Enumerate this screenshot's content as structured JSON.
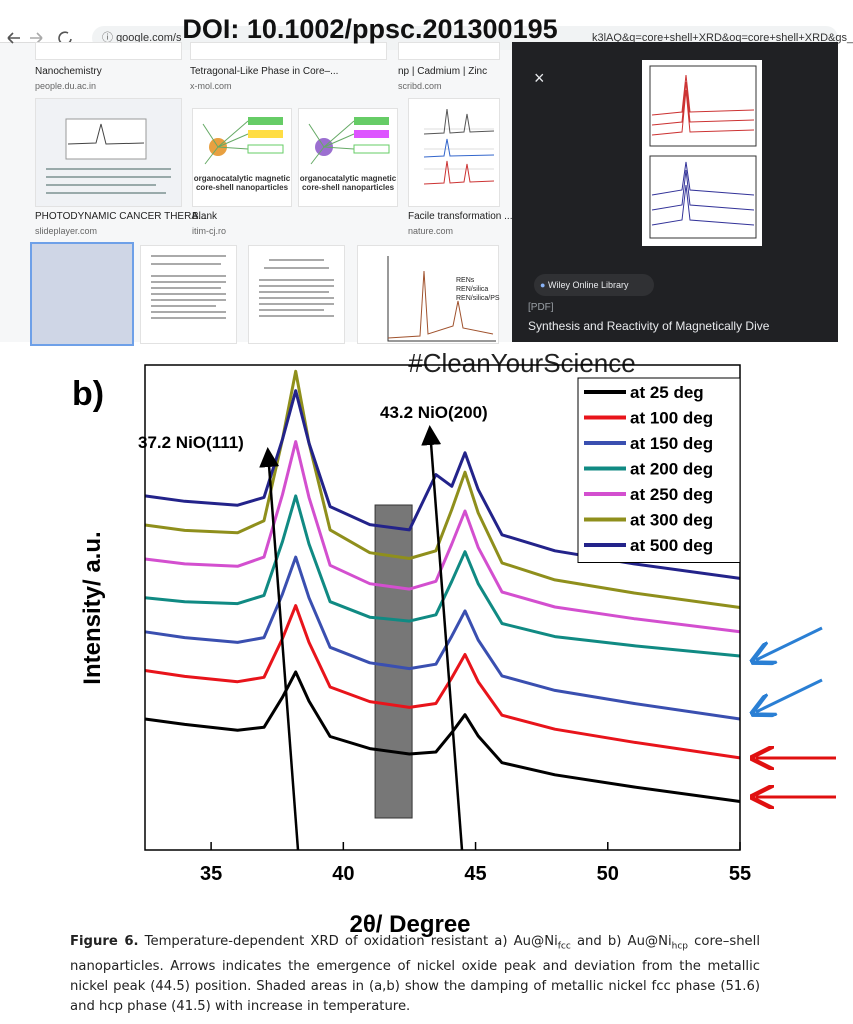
{
  "doi": "DOI: 10.1002/ppsc.201300195",
  "hashtag": "#CleanYourScience",
  "browser": {
    "url": "google.com/s",
    "url_tail": "k3lAQ&q=core+shell+XRD&oq=core+shell+XRD&gs_"
  },
  "results": [
    {
      "title": "Nanochemistry",
      "source": "people.du.ac.in"
    },
    {
      "title": "Tetragonal-Like Phase in Core–...",
      "source": "x-mol.com"
    },
    {
      "title": "np | Cadmium | Zinc",
      "source": "scribd.com"
    },
    {
      "title": "PHOTODYNAMIC CANCER THERA...",
      "source": "slideplayer.com"
    },
    {
      "title": "Blank",
      "source": "itim-cj.ro"
    },
    {
      "title": "Facile transformation ...",
      "source": "nature.com"
    }
  ],
  "thumbnails": {
    "organo_1": "organocatalytic magnetic core-shell nanoparticles",
    "organo_2": "organocatalytic magnetic core-shell nanoparticles",
    "legend": [
      "RENs",
      "REN/silica",
      "REN/silica/PS"
    ]
  },
  "panel": {
    "source": "Wiley Online Library",
    "tag": "[PDF]",
    "title": "Synthesis and Reactivity of Magnetically Dive"
  },
  "chart_data": {
    "type": "line",
    "panel_label": "b)",
    "xlabel": "2θ/ Degree",
    "ylabel": "Intensity/ a.u.",
    "xlim": [
      32.5,
      55
    ],
    "xticks": [
      35,
      40,
      45,
      50,
      55
    ],
    "ylim": [
      0,
      100
    ],
    "legend": "upper right",
    "annotations": [
      "37.2 NiO(111)",
      "43.2 NiO(200)"
    ],
    "shaded_band": [
      41.2,
      42.6
    ],
    "x": [
      32.5,
      34,
      36,
      37,
      37.7,
      38.2,
      38.7,
      39.5,
      41,
      42.5,
      43.5,
      44.1,
      44.6,
      45.1,
      46,
      48,
      51,
      55
    ],
    "series": [
      {
        "name": "at 25 deg",
        "color": "#000000",
        "values": [
          27,
          25.9,
          24.7,
          25.3,
          31.5,
          36.7,
          30.7,
          23.4,
          20.9,
          19.8,
          20.2,
          24.2,
          27.9,
          23.5,
          18,
          15.5,
          13,
          10
        ]
      },
      {
        "name": "at 100 deg",
        "color": "#e8141b",
        "values": [
          37,
          35.8,
          34.7,
          35.6,
          43.6,
          50.4,
          42.8,
          33.6,
          30.6,
          29.4,
          30.2,
          35.5,
          40.3,
          34.7,
          27.8,
          24.9,
          22.2,
          19
        ]
      },
      {
        "name": "at 150 deg",
        "color": "#3a4fb0",
        "values": [
          45,
          43.8,
          42.8,
          43.8,
          52.8,
          60.4,
          52,
          41.8,
          38.6,
          37.4,
          38.3,
          44.1,
          49.3,
          43.3,
          35.9,
          32.9,
          30.2,
          27
        ]
      },
      {
        "name": "at 200 deg",
        "color": "#108a83",
        "values": [
          52,
          51.2,
          50.8,
          52.5,
          63.6,
          73,
          63.1,
          51.2,
          48,
          47.2,
          48.5,
          55.4,
          61.5,
          54.9,
          46.7,
          44,
          42.1,
          40
        ]
      },
      {
        "name": "at 250 deg",
        "color": "#d34fcf",
        "values": [
          60,
          59,
          58.5,
          60.4,
          73.3,
          84.2,
          72.7,
          58.7,
          54.9,
          53.8,
          55.4,
          63.1,
          69.9,
          62.4,
          53.2,
          50.1,
          47.7,
          45
        ]
      },
      {
        "name": "at 300 deg",
        "color": "#8f8f1c",
        "values": [
          67,
          65.9,
          65.4,
          67.9,
          84.7,
          98.7,
          83.9,
          66,
          61.3,
          60.1,
          61.7,
          70.2,
          77.9,
          69.5,
          59.2,
          55.7,
          53,
          50
        ]
      },
      {
        "name": "at 500 deg",
        "color": "#23238a",
        "values": [
          73,
          71.9,
          71.1,
          72.7,
          84.7,
          94.7,
          83.9,
          70.8,
          67.1,
          66,
          77.4,
          75,
          81.9,
          74.3,
          65,
          61.7,
          59,
          56
        ]
      }
    ]
  },
  "caption": {
    "label": "Figure 6.",
    "parts": [
      " Temperature-dependent XRD of oxidation resistant a) Au@Ni",
      "fcc",
      " and b) Au@Ni",
      "hcp",
      " core–shell nanoparticles. Arrows indicates the emergence of nickel oxide peak and deviation from the metallic nickel peak (44.5) position. Shaded areas in (a,b) show the damping of metallic nickel fcc phase (51.6) and hcp phase (41.5) with increase in temperature."
    ]
  }
}
